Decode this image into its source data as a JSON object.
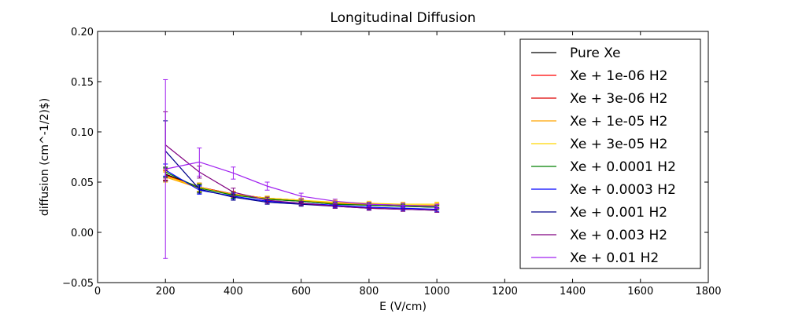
{
  "chart_data": {
    "type": "line",
    "title": "Longitudinal Diffusion",
    "xlabel": "E (V/cm)",
    "ylabel": "diffusion (cm^-1/2)$)",
    "xlim": [
      0,
      1800
    ],
    "ylim": [
      -0.05,
      0.2
    ],
    "xticks": [
      0,
      200,
      400,
      600,
      800,
      1000,
      1200,
      1400,
      1600,
      1800
    ],
    "yticks": [
      -0.05,
      0.0,
      0.05,
      0.1,
      0.15,
      0.2
    ],
    "xtick_labels": [
      "0",
      "200",
      "400",
      "600",
      "800",
      "1000",
      "1200",
      "1400",
      "1600",
      "1800"
    ],
    "ytick_labels": [
      "−0.05",
      "0.00",
      "0.05",
      "0.10",
      "0.15",
      "0.20"
    ],
    "grid": false,
    "legend_position": "right",
    "x": [
      200,
      300,
      400,
      500,
      600,
      700,
      800,
      900,
      1000
    ],
    "series": [
      {
        "name": "Pure Xe",
        "color": "#000000",
        "values": [
          0.058,
          0.045,
          0.038,
          0.033,
          0.031,
          0.028,
          0.027,
          0.026,
          0.025
        ],
        "errors": [
          0.006,
          0.004,
          0.003,
          0.002,
          0.002,
          0.002,
          0.002,
          0.002,
          0.002
        ]
      },
      {
        "name": "Xe + 1e-06 H2",
        "color": "#ff0000",
        "values": [
          0.057,
          0.045,
          0.038,
          0.034,
          0.032,
          0.029,
          0.028,
          0.027,
          0.026
        ],
        "errors": [
          0.005,
          0.004,
          0.003,
          0.002,
          0.002,
          0.002,
          0.002,
          0.002,
          0.002
        ]
      },
      {
        "name": "Xe + 3e-06 H2",
        "color": "#dd0000",
        "values": [
          0.057,
          0.044,
          0.038,
          0.034,
          0.032,
          0.029,
          0.028,
          0.027,
          0.026
        ],
        "errors": [
          0.005,
          0.004,
          0.003,
          0.002,
          0.002,
          0.002,
          0.002,
          0.002,
          0.002
        ]
      },
      {
        "name": "Xe + 1e-05 H2",
        "color": "#ffa500",
        "values": [
          0.055,
          0.044,
          0.038,
          0.034,
          0.032,
          0.029,
          0.028,
          0.027,
          0.027
        ],
        "errors": [
          0.005,
          0.004,
          0.003,
          0.002,
          0.002,
          0.002,
          0.002,
          0.002,
          0.002
        ]
      },
      {
        "name": "Xe + 3e-05 H2",
        "color": "#ffd700",
        "values": [
          0.056,
          0.045,
          0.037,
          0.034,
          0.032,
          0.03,
          0.029,
          0.028,
          0.028
        ],
        "errors": [
          0.005,
          0.004,
          0.003,
          0.002,
          0.002,
          0.002,
          0.002,
          0.002,
          0.002
        ]
      },
      {
        "name": "Xe + 0.0001 H2",
        "color": "#008000",
        "values": [
          0.06,
          0.044,
          0.037,
          0.033,
          0.031,
          0.028,
          0.027,
          0.026,
          0.025
        ],
        "errors": [
          0.005,
          0.004,
          0.003,
          0.002,
          0.002,
          0.002,
          0.002,
          0.002,
          0.002
        ]
      },
      {
        "name": "Xe + 0.0003 H2",
        "color": "#0000ff",
        "values": [
          0.062,
          0.042,
          0.036,
          0.031,
          0.029,
          0.027,
          0.025,
          0.024,
          0.023
        ],
        "errors": [
          0.006,
          0.004,
          0.003,
          0.002,
          0.002,
          0.002,
          0.002,
          0.002,
          0.002
        ]
      },
      {
        "name": "Xe + 0.001 H2",
        "color": "#00008b",
        "values": [
          0.081,
          0.043,
          0.035,
          0.03,
          0.028,
          0.026,
          0.024,
          0.023,
          0.022
        ],
        "errors": [
          0.03,
          0.004,
          0.003,
          0.002,
          0.002,
          0.002,
          0.002,
          0.002,
          0.002
        ]
      },
      {
        "name": "Xe + 0.003 H2",
        "color": "#800080",
        "values": [
          0.087,
          0.06,
          0.04,
          0.032,
          0.029,
          0.026,
          0.024,
          0.023,
          0.022
        ],
        "errors": [
          0.033,
          0.006,
          0.004,
          0.003,
          0.002,
          0.002,
          0.002,
          0.002,
          0.002
        ]
      },
      {
        "name": "Xe + 0.01 H2",
        "color": "#a020f0",
        "values": [
          0.063,
          0.07,
          0.059,
          0.046,
          0.036,
          0.031,
          0.028,
          0.027,
          0.026
        ],
        "errors": [
          0.089,
          0.014,
          0.006,
          0.004,
          0.003,
          0.002,
          0.002,
          0.002,
          0.002
        ]
      }
    ]
  }
}
